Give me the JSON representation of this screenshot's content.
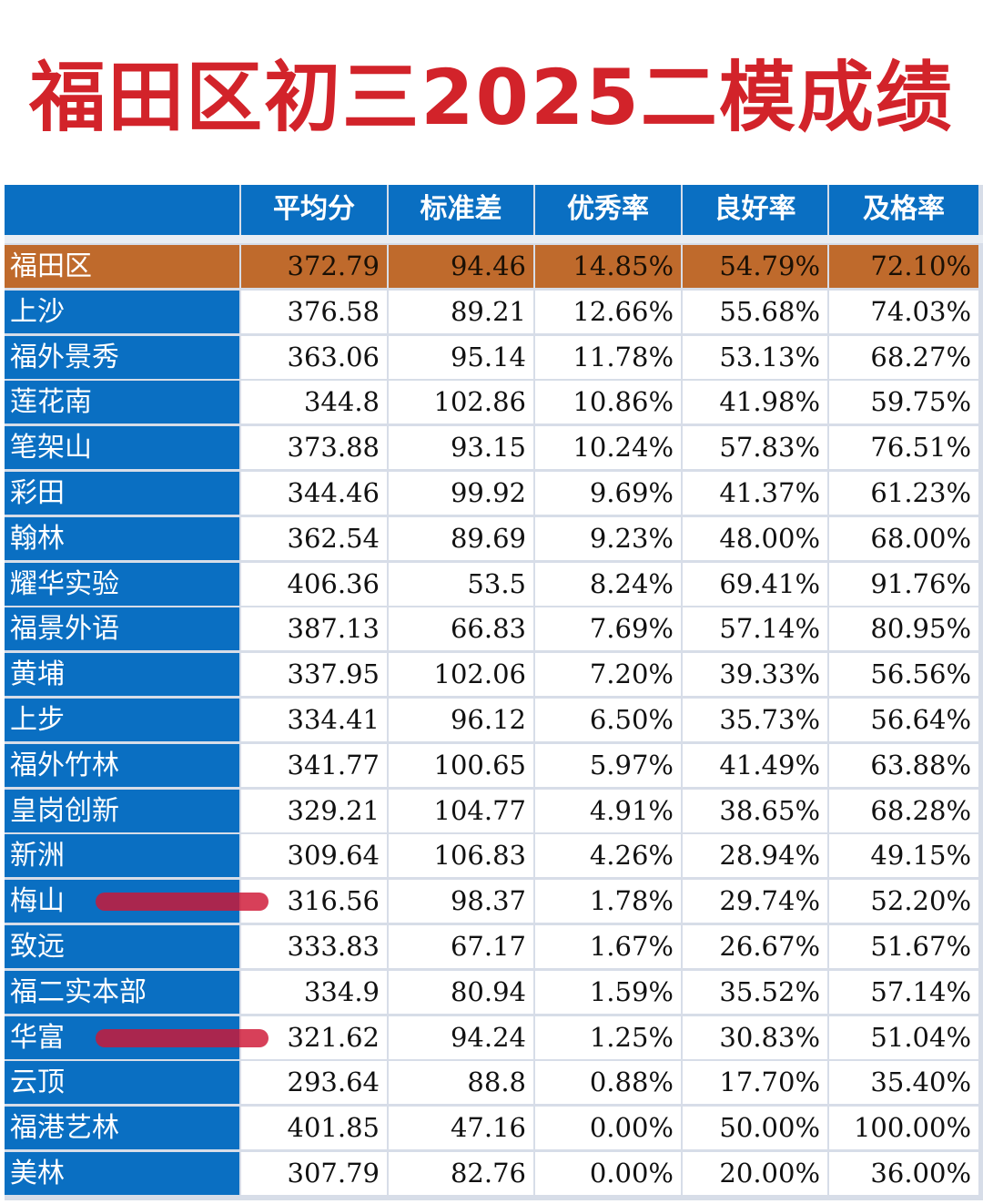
{
  "title": "福田区初三2025二模成绩",
  "columns": [
    "",
    "平均分",
    "标准差",
    "优秀率",
    "良好率",
    "及格率"
  ],
  "rows": [
    [
      "福田区",
      "372.79",
      "94.46",
      "14.85%",
      "54.79%",
      "72.10%"
    ],
    [
      "上沙",
      "376.58",
      "89.21",
      "12.66%",
      "55.68%",
      "74.03%"
    ],
    [
      "福外景秀",
      "363.06",
      "95.14",
      "11.78%",
      "53.13%",
      "68.27%"
    ],
    [
      "莲花南",
      "344.8",
      "102.86",
      "10.86%",
      "41.98%",
      "59.75%"
    ],
    [
      "笔架山",
      "373.88",
      "93.15",
      "10.24%",
      "57.83%",
      "76.51%"
    ],
    [
      "彩田",
      "344.46",
      "99.92",
      "9.69%",
      "41.37%",
      "61.23%"
    ],
    [
      "翰林",
      "362.54",
      "89.69",
      "9.23%",
      "48.00%",
      "68.00%"
    ],
    [
      "耀华实验",
      "406.36",
      "53.5",
      "8.24%",
      "69.41%",
      "91.76%"
    ],
    [
      "福景外语",
      "387.13",
      "66.83",
      "7.69%",
      "57.14%",
      "80.95%"
    ],
    [
      "黄埔",
      "337.95",
      "102.06",
      "7.20%",
      "39.33%",
      "56.56%"
    ],
    [
      "上步",
      "334.41",
      "96.12",
      "6.50%",
      "35.73%",
      "56.64%"
    ],
    [
      "福外竹林",
      "341.77",
      "100.65",
      "5.97%",
      "41.49%",
      "63.88%"
    ],
    [
      "皇岗创新",
      "329.21",
      "104.77",
      "4.91%",
      "38.65%",
      "68.28%"
    ],
    [
      "新洲",
      "309.64",
      "106.83",
      "4.26%",
      "28.94%",
      "49.15%"
    ],
    [
      "梅山",
      "316.56",
      "98.37",
      "1.78%",
      "29.74%",
      "52.20%"
    ],
    [
      "致远",
      "333.83",
      "67.17",
      "1.67%",
      "26.67%",
      "51.67%"
    ],
    [
      "福二实本部",
      "334.9",
      "80.94",
      "1.59%",
      "35.52%",
      "57.14%"
    ],
    [
      "华富",
      "321.62",
      "94.24",
      "1.25%",
      "30.83%",
      "51.04%"
    ],
    [
      "云顶",
      "293.64",
      "88.8",
      "0.88%",
      "17.70%",
      "35.40%"
    ],
    [
      "福港艺林",
      "401.85",
      "47.16",
      "0.00%",
      "50.00%",
      "100.00%"
    ],
    [
      "美林",
      "307.79",
      "82.76",
      "0.00%",
      "20.00%",
      "36.00%"
    ]
  ],
  "highlight_row": 0,
  "colors": {
    "header": "#0a6fc2",
    "highlight": "#bf6a2c",
    "title": "#d2232a",
    "marker": "#ce1634"
  },
  "marked_rows": [
    14,
    17
  ]
}
